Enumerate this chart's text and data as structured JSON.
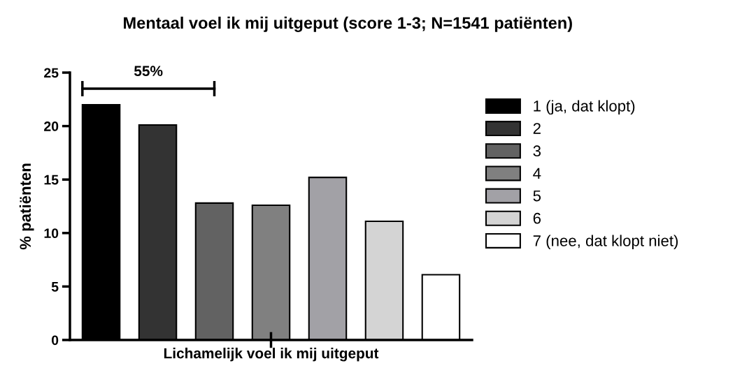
{
  "chart_data": {
    "type": "bar",
    "title": "Mentaal voel ik mij uitgeput (score 1-3; N=1541 patiënten)",
    "ylabel": "% patiënten",
    "xlabel": "Lichamelijk voel ik mij uitgeput",
    "categories": [
      null,
      null,
      null,
      null,
      null,
      null,
      null
    ],
    "stacked": true,
    "series": [
      {
        "name": "1 (ja, dat klopt)",
        "color": "#000000",
        "values": [
          22.0,
          null,
          null,
          null,
          null,
          null,
          null
        ]
      },
      {
        "name": "2",
        "color": "#333333",
        "values": [
          null,
          20.1,
          null,
          null,
          null,
          null,
          null
        ]
      },
      {
        "name": "3",
        "color": "#626262",
        "values": [
          null,
          null,
          12.8,
          null,
          null,
          null,
          null
        ]
      },
      {
        "name": "4",
        "color": "#808080",
        "values": [
          null,
          null,
          null,
          12.6,
          null,
          null,
          null
        ]
      },
      {
        "name": "5",
        "color": "#a2a1a6",
        "values": [
          null,
          null,
          null,
          null,
          15.2,
          null,
          null
        ]
      },
      {
        "name": "6",
        "color": "#d4d4d4",
        "values": [
          null,
          null,
          null,
          null,
          null,
          11.1,
          null
        ]
      },
      {
        "name": "7 (nee, dat klopt niet)",
        "color": "#ffffff",
        "values": [
          null,
          null,
          null,
          null,
          null,
          null,
          6.1
        ]
      }
    ],
    "ylim": [
      0,
      25
    ],
    "yticks": [
      0,
      5,
      10,
      15,
      20,
      25
    ],
    "annotations": [
      "55%"
    ],
    "legend": "right",
    "grid": false
  }
}
